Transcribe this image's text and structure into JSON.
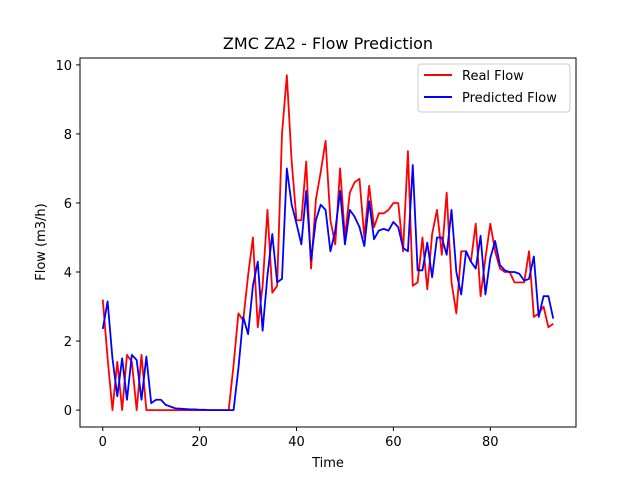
{
  "chart_data": {
    "type": "line",
    "title": "ZMC ZA2 - Flow Prediction",
    "xlabel": "Time",
    "ylabel": "Flow (m3/h)",
    "xlim": [
      -4.7,
      97.7
    ],
    "ylim": [
      -0.49,
      10.2
    ],
    "x_ticks": [
      0,
      20,
      40,
      60,
      80
    ],
    "y_ticks": [
      0,
      2,
      4,
      6,
      8,
      10
    ],
    "grid": false,
    "legend_position": "top-right",
    "series": [
      {
        "name": "Real Flow",
        "color": "#ff0000",
        "x": [
          0,
          1,
          2,
          3,
          4,
          5,
          6,
          7,
          8,
          9,
          10,
          11,
          12,
          13,
          14,
          15,
          16,
          17,
          18,
          19,
          20,
          21,
          22,
          23,
          24,
          25,
          26,
          27,
          28,
          29,
          30,
          31,
          32,
          33,
          34,
          35,
          36,
          37,
          38,
          39,
          40,
          41,
          42,
          43,
          44,
          45,
          46,
          47,
          48,
          49,
          50,
          51,
          52,
          53,
          54,
          55,
          56,
          57,
          58,
          59,
          60,
          61,
          62,
          63,
          64,
          65,
          66,
          67,
          68,
          69,
          70,
          71,
          72,
          73,
          74,
          75,
          76,
          77,
          78,
          79,
          80,
          81,
          82,
          83,
          84,
          85,
          86,
          87,
          88,
          89,
          90,
          91,
          92,
          93
        ],
        "y": [
          3.2,
          1.5,
          0.0,
          1.4,
          0.0,
          1.6,
          1.4,
          0.0,
          1.6,
          0.0,
          0.0,
          0.0,
          0.0,
          0.0,
          0.0,
          0.0,
          0.0,
          0.0,
          0.0,
          0.0,
          0.0,
          0.0,
          0.0,
          0.0,
          0.0,
          0.0,
          0.0,
          1.3,
          2.8,
          2.6,
          3.9,
          5.0,
          2.4,
          3.6,
          5.8,
          3.4,
          3.6,
          8.0,
          9.7,
          7.2,
          5.5,
          5.5,
          7.2,
          4.1,
          6.1,
          6.9,
          7.8,
          5.5,
          4.8,
          7.0,
          5.0,
          6.3,
          6.6,
          6.7,
          5.0,
          6.5,
          5.3,
          5.7,
          5.7,
          5.8,
          6.0,
          6.0,
          4.6,
          7.5,
          3.6,
          3.7,
          5.0,
          3.5,
          5.1,
          5.8,
          4.5,
          6.3,
          3.7,
          2.8,
          4.6,
          4.6,
          4.3,
          5.4,
          3.3,
          4.4,
          5.4,
          4.6,
          4.1,
          4.0,
          4.0,
          3.7,
          3.7,
          3.7,
          4.6,
          2.7,
          2.8,
          3.0,
          2.4,
          2.5
        ]
      },
      {
        "name": "Predicted Flow",
        "color": "#0000ff",
        "x": [
          0,
          1,
          2,
          3,
          4,
          5,
          6,
          7,
          8,
          9,
          10,
          11,
          12,
          13,
          14,
          15,
          16,
          17,
          18,
          19,
          20,
          21,
          22,
          23,
          24,
          25,
          26,
          27,
          28,
          29,
          30,
          31,
          32,
          33,
          34,
          35,
          36,
          37,
          38,
          39,
          40,
          41,
          42,
          43,
          44,
          45,
          46,
          47,
          48,
          49,
          50,
          51,
          52,
          53,
          54,
          55,
          56,
          57,
          58,
          59,
          60,
          61,
          62,
          63,
          64,
          65,
          66,
          67,
          68,
          69,
          70,
          71,
          72,
          73,
          74,
          75,
          76,
          77,
          78,
          79,
          80,
          81,
          82,
          83,
          84,
          85,
          86,
          87,
          88,
          89,
          90,
          91,
          92,
          93
        ],
        "y": [
          2.35,
          3.15,
          1.5,
          0.4,
          1.5,
          0.3,
          1.6,
          1.45,
          0.3,
          1.55,
          0.2,
          0.3,
          0.3,
          0.15,
          0.1,
          0.05,
          0.04,
          0.03,
          0.02,
          0.02,
          0.01,
          0.01,
          0.0,
          0.0,
          0.0,
          0.0,
          0.0,
          0.0,
          1.2,
          2.7,
          2.2,
          3.6,
          4.3,
          2.3,
          3.9,
          5.1,
          3.7,
          3.8,
          7.0,
          5.95,
          5.4,
          4.8,
          6.35,
          4.35,
          5.5,
          5.95,
          5.8,
          4.6,
          5.2,
          6.35,
          4.8,
          5.8,
          5.6,
          5.3,
          4.75,
          6.05,
          4.95,
          5.2,
          5.25,
          5.2,
          5.45,
          5.3,
          4.7,
          4.6,
          7.1,
          4.05,
          4.05,
          4.85,
          3.85,
          5.0,
          5.0,
          4.5,
          5.8,
          4.0,
          3.35,
          4.6,
          4.3,
          4.1,
          5.05,
          3.35,
          4.4,
          4.9,
          4.2,
          4.05,
          4.0,
          4.0,
          3.95,
          3.75,
          3.8,
          4.45,
          2.7,
          3.3,
          3.3,
          2.65
        ]
      }
    ]
  }
}
